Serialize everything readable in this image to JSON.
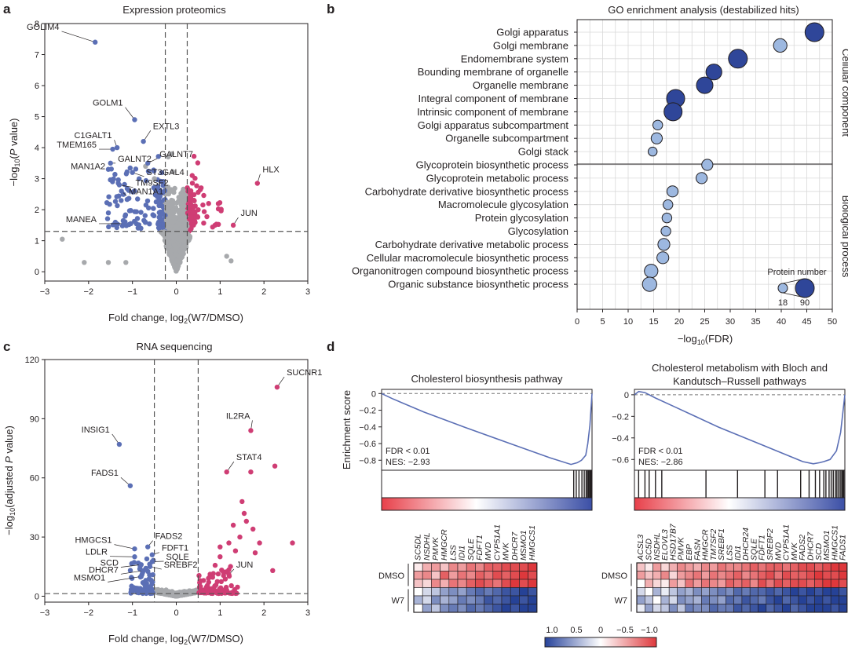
{
  "panel_letters": {
    "a": "a",
    "b": "b",
    "c": "c",
    "d": "d"
  },
  "colors": {
    "down": "#5b6fb5",
    "up": "#cf3d74",
    "ns": "#a7a9ac",
    "bubble_dark": "#2f4699",
    "bubble_light": "#9db8e0",
    "axis": "#231f20"
  },
  "chart_data": [
    {
      "id": "a",
      "type": "scatter",
      "title": "Expression proteomics",
      "xlabel": "Fold change, log2(W7/DMSO)",
      "ylabel": "−log10(P value)",
      "xlim": [
        -3,
        3
      ],
      "ylim": [
        -0.3,
        8
      ],
      "xticks": [
        "−3",
        "−2",
        "−1",
        "0",
        "1",
        "2",
        "3"
      ],
      "yticks": [
        "0",
        "1",
        "2",
        "3",
        "4",
        "5",
        "6",
        "7",
        "8"
      ],
      "thresholds": {
        "fc": [
          -0.25,
          0.25
        ],
        "p": 1.3
      },
      "labeled": [
        {
          "label": "GOLIM4",
          "x": -1.85,
          "y": 7.4,
          "lx": -2.65,
          "ly": 7.8
        },
        {
          "label": "GOLM1",
          "x": -0.95,
          "y": 4.9,
          "lx": -1.2,
          "ly": 5.35
        },
        {
          "label": "EXTL3",
          "x": -0.75,
          "y": 4.2,
          "lx": -0.55,
          "ly": 4.6
        },
        {
          "label": "C1GALT1",
          "x": -1.35,
          "y": 4.0,
          "lx": -1.45,
          "ly": 4.3
        },
        {
          "label": "TMEM165",
          "x": -1.45,
          "y": 3.95,
          "lx": -1.8,
          "ly": 4.0
        },
        {
          "label": "GALNT7",
          "x": -0.65,
          "y": 3.5,
          "lx": -0.4,
          "ly": 3.7
        },
        {
          "label": "GALNT2",
          "x": -1.5,
          "y": 3.5,
          "lx": -1.35,
          "ly": 3.55
        },
        {
          "label": "MAN1A2",
          "x": -1.55,
          "y": 3.3,
          "lx": -1.6,
          "ly": 3.3
        },
        {
          "label": "ST3GAL4",
          "x": -1.0,
          "y": 3.2,
          "lx": -0.7,
          "ly": 3.12
        },
        {
          "label": "TM9SF2",
          "x": -1.3,
          "y": 2.8,
          "lx": -0.95,
          "ly": 2.77
        },
        {
          "label": "MAN1A1",
          "x": -1.25,
          "y": 2.6,
          "lx": -1.1,
          "ly": 2.5
        },
        {
          "label": "MANEA",
          "x": -1.2,
          "y": 1.55,
          "lx": -1.8,
          "ly": 1.6
        },
        {
          "label": "HLX",
          "x": 1.85,
          "y": 2.85,
          "lx": 1.95,
          "ly": 3.2
        },
        {
          "label": "JUN",
          "x": 1.3,
          "y": 1.5,
          "lx": 1.45,
          "ly": 1.8
        }
      ]
    },
    {
      "id": "b",
      "type": "scatter",
      "title": "GO enrichment analysis (destabilized hits)",
      "xlabel": "−log10(FDR)",
      "xlim": [
        0,
        50
      ],
      "xticks": [
        "0",
        "5",
        "10",
        "15",
        "20",
        "25",
        "30",
        "35",
        "40",
        "45",
        "50"
      ],
      "groups": [
        {
          "name": "Cellular component",
          "terms": [
            {
              "term": "Golgi apparatus",
              "x": 46.5,
              "n": 90
            },
            {
              "term": "Golgi membrane",
              "x": 39.8,
              "n": 55
            },
            {
              "term": "Endomembrane system",
              "x": 31.5,
              "n": 90
            },
            {
              "term": "Bounding membrane of organelle",
              "x": 26.8,
              "n": 70
            },
            {
              "term": "Organelle membrane",
              "x": 25.0,
              "n": 75
            },
            {
              "term": "Integral component of membrane",
              "x": 19.3,
              "n": 85
            },
            {
              "term": "Intrinsic component of membrane",
              "x": 18.8,
              "n": 85
            },
            {
              "term": "Golgi apparatus subcompartment",
              "x": 15.8,
              "n": 30
            },
            {
              "term": "Organelle subcompartment",
              "x": 15.6,
              "n": 40
            },
            {
              "term": "Golgi stack",
              "x": 14.8,
              "n": 25
            }
          ]
        },
        {
          "name": "Biological process",
          "terms": [
            {
              "term": "Glycoprotein biosynthetic process",
              "x": 25.5,
              "n": 40
            },
            {
              "term": "Glycoprotein metabolic process",
              "x": 24.4,
              "n": 40
            },
            {
              "term": "Carbohydrate derivative biosynthetic process",
              "x": 18.7,
              "n": 40
            },
            {
              "term": "Macromolecule glycosylation",
              "x": 17.8,
              "n": 30
            },
            {
              "term": "Protein glycosylation",
              "x": 17.6,
              "n": 30
            },
            {
              "term": "Glycosylation",
              "x": 17.4,
              "n": 30
            },
            {
              "term": "Carbohydrate derivative metabolic process",
              "x": 17.0,
              "n": 45
            },
            {
              "term": "Cellular macromolecule biosynthetic process",
              "x": 16.8,
              "n": 45
            },
            {
              "term": "Organonitrogen compound biosynthetic process",
              "x": 14.5,
              "n": 55
            },
            {
              "term": "Organic substance biosynthetic process",
              "x": 14.2,
              "n": 60
            }
          ]
        }
      ],
      "legend": {
        "title": "Protein number",
        "min": "18",
        "max": "90",
        "placement": "bottom-right"
      }
    },
    {
      "id": "c",
      "type": "scatter",
      "title": "RNA sequencing",
      "xlabel": "Fold change, log2(W7/DMSO)",
      "ylabel": "−log10(adjusted P value)",
      "xlim": [
        -3,
        3
      ],
      "ylim": [
        -3,
        120
      ],
      "xticks": [
        "−3",
        "−2",
        "−1",
        "0",
        "1",
        "2",
        "3"
      ],
      "yticks": [
        "0",
        "30",
        "60",
        "90",
        "120"
      ],
      "thresholds": {
        "fc": [
          -0.5,
          0.5
        ],
        "p": 1.3
      },
      "labeled": [
        {
          "label": "SUCNR1",
          "x": 2.3,
          "y": 106,
          "lx": 2.5,
          "ly": 112
        },
        {
          "label": "IL2RA",
          "x": 1.7,
          "y": 84,
          "lx": 1.7,
          "ly": 90
        },
        {
          "label": "INSIG1",
          "x": -1.3,
          "y": 77,
          "lx": -1.5,
          "ly": 83
        },
        {
          "label": "STAT4",
          "x": 1.15,
          "y": 63,
          "lx": 1.35,
          "ly": 69
        },
        {
          "label": "FADS1",
          "x": -1.05,
          "y": 56,
          "lx": -1.3,
          "ly": 61
        },
        {
          "label": "FADS2",
          "x": -0.65,
          "y": 25,
          "lx": -0.5,
          "ly": 29
        },
        {
          "label": "HMGCS1",
          "x": -0.95,
          "y": 24,
          "lx": -1.45,
          "ly": 27
        },
        {
          "label": "FDFT1",
          "x": -0.55,
          "y": 21,
          "lx": -0.35,
          "ly": 23
        },
        {
          "label": "LDLR",
          "x": -0.95,
          "y": 20,
          "lx": -1.55,
          "ly": 21
        },
        {
          "label": "SQLE",
          "x": -0.55,
          "y": 17.5,
          "lx": -0.25,
          "ly": 18.5
        },
        {
          "label": "SCD",
          "x": -0.8,
          "y": 16,
          "lx": -1.3,
          "ly": 15.5
        },
        {
          "label": "SREBF2",
          "x": -0.6,
          "y": 15,
          "lx": -0.3,
          "ly": 14.5
        },
        {
          "label": "DHCR7",
          "x": -0.75,
          "y": 13,
          "lx": -1.3,
          "ly": 12
        },
        {
          "label": "MSMO1",
          "x": -0.8,
          "y": 10,
          "lx": -1.6,
          "ly": 8
        },
        {
          "label": "JUN",
          "x": 1.2,
          "y": 11,
          "lx": 1.35,
          "ly": 14.5
        }
      ]
    },
    {
      "id": "d1",
      "type": "line",
      "title_lines": [
        "Cholesterol biosynthesis pathway"
      ],
      "ylabel": "Enrichment score",
      "ylim": [
        -0.92,
        0.05
      ],
      "yticks": [
        "0",
        "−0.2",
        "−0.4",
        "−0.6",
        "−0.8"
      ],
      "annotations": [
        "FDR < 0.01",
        "NES: −2.93"
      ],
      "x": [
        0,
        0.05,
        0.2,
        0.4,
        0.6,
        0.8,
        0.9,
        0.93,
        0.95,
        0.97,
        0.98,
        0.99,
        1.0
      ],
      "y": [
        0,
        -0.06,
        -0.22,
        -0.41,
        -0.59,
        -0.77,
        -0.85,
        -0.83,
        -0.8,
        -0.74,
        -0.6,
        -0.38,
        0
      ],
      "hits": [
        0.913,
        0.925,
        0.938,
        0.952,
        0.963,
        0.972,
        0.978,
        0.983,
        0.988,
        0.992,
        0.996
      ],
      "heatmap": {
        "genes": [
          "SC5DL",
          "NSDHL",
          "PMVK",
          "HMGCR",
          "LSS",
          "IDI1",
          "SQLE",
          "FDFT1",
          "MVD",
          "CYP51A1",
          "MVK",
          "DHCR7",
          "MSMO1",
          "HMGCS1"
        ],
        "rows": [
          "DMSO",
          "W7"
        ],
        "values": [
          [
            0.1,
            0.4,
            0.5,
            0.3,
            0.6,
            0.5,
            0.7,
            0.6,
            0.8,
            0.8,
            0.9,
            0.9,
            0.9,
            1.0
          ],
          [
            0.5,
            0.6,
            0.3,
            0.8,
            0.5,
            0.7,
            0.6,
            0.8,
            0.7,
            0.9,
            0.8,
            0.9,
            1.0,
            0.9
          ],
          [
            0.3,
            0.2,
            0.6,
            0.4,
            0.7,
            0.6,
            0.8,
            0.9,
            0.8,
            0.7,
            0.9,
            1.0,
            0.9,
            1.0
          ],
          [
            0.0,
            -0.2,
            -0.3,
            -0.5,
            -0.6,
            -0.5,
            -0.7,
            -0.8,
            -0.7,
            -0.8,
            -0.9,
            -0.9,
            -1.0,
            -0.9
          ],
          [
            -0.4,
            -0.2,
            -0.6,
            -0.4,
            -0.5,
            -0.7,
            -0.6,
            -0.7,
            -0.9,
            -0.8,
            -0.9,
            -1.0,
            -0.9,
            -1.0
          ],
          [
            0.0,
            -0.5,
            -0.3,
            -0.6,
            -0.7,
            -0.6,
            -0.8,
            -0.7,
            -0.8,
            -0.9,
            -1.0,
            -0.9,
            -1.0,
            -1.0
          ]
        ]
      }
    },
    {
      "id": "d2",
      "type": "line",
      "title_lines": [
        "Cholesterol metabolism with Bloch and",
        "Kandutsch–Russell pathways"
      ],
      "ylabel": "",
      "ylim": [
        -0.7,
        0.05
      ],
      "yticks": [
        "0",
        "−0.2",
        "−0.4",
        "−0.6"
      ],
      "annotations": [
        "FDR < 0.01",
        "NES: −2.86"
      ],
      "x": [
        0,
        0.02,
        0.05,
        0.1,
        0.2,
        0.4,
        0.6,
        0.7,
        0.8,
        0.85,
        0.88,
        0.9,
        0.93,
        0.96,
        0.98,
        1.0
      ],
      "y": [
        0,
        0.03,
        0.02,
        -0.03,
        -0.12,
        -0.3,
        -0.46,
        -0.54,
        -0.62,
        -0.64,
        -0.63,
        -0.62,
        -0.6,
        -0.52,
        -0.35,
        0
      ],
      "hits": [
        0.02,
        0.05,
        0.07,
        0.1,
        0.13,
        0.34,
        0.49,
        0.62,
        0.68,
        0.79,
        0.83,
        0.86,
        0.88,
        0.9,
        0.91,
        0.925,
        0.935,
        0.945,
        0.955,
        0.962,
        0.97,
        0.978,
        0.985,
        0.99,
        0.995
      ],
      "heatmap": {
        "genes": [
          "ACSL3",
          "SC5D",
          "NSDHL",
          "ELOVL3",
          "HSD17B7",
          "PMVK",
          "EBP",
          "FASN",
          "HMGCR",
          "TM7SF2",
          "SREBF1",
          "LSS",
          "IDI1",
          "DHCR24",
          "SQLE",
          "FDFT1",
          "SREBF2",
          "MVD",
          "CYP51A1",
          "MVK",
          "FADS2",
          "DHCR7",
          "SCD",
          "MSMO1",
          "HMGCS1",
          "FADS1"
        ],
        "rows": [
          "DMSO",
          "W7"
        ],
        "values": [
          [
            0.3,
            0.1,
            0.5,
            0.2,
            0.4,
            0.6,
            0.5,
            0.4,
            0.6,
            0.5,
            0.7,
            0.6,
            0.6,
            0.7,
            0.8,
            0.7,
            0.8,
            0.8,
            0.7,
            0.8,
            0.9,
            0.9,
            0.8,
            0.9,
            1.0,
            1.0
          ],
          [
            0.5,
            0.3,
            0.4,
            0.6,
            0.2,
            0.5,
            0.6,
            0.7,
            0.5,
            0.7,
            0.6,
            0.7,
            0.8,
            0.6,
            0.7,
            0.8,
            0.9,
            0.7,
            0.9,
            0.8,
            0.8,
            0.9,
            1.0,
            0.9,
            0.9,
            1.0
          ],
          [
            0.0,
            0.4,
            0.2,
            0.1,
            0.5,
            0.3,
            0.7,
            0.5,
            0.7,
            0.6,
            0.5,
            0.8,
            0.7,
            0.8,
            0.6,
            0.9,
            0.7,
            0.9,
            0.8,
            0.9,
            0.9,
            0.8,
            0.9,
            1.0,
            1.0,
            0.9
          ],
          [
            -0.2,
            0.0,
            -0.4,
            -0.1,
            -0.3,
            -0.5,
            -0.4,
            -0.6,
            -0.5,
            -0.6,
            -0.7,
            -0.6,
            -0.8,
            -0.7,
            -0.8,
            -0.8,
            -0.9,
            -0.8,
            -0.9,
            -1.0,
            -0.9,
            -1.0,
            -0.9,
            -1.0,
            -1.0,
            -0.9
          ],
          [
            -0.5,
            -0.3,
            0.0,
            -0.4,
            -0.2,
            -0.6,
            -0.5,
            -0.4,
            -0.7,
            -0.6,
            -0.5,
            -0.8,
            -0.7,
            -0.9,
            -0.8,
            -0.7,
            -0.9,
            -1.0,
            -0.8,
            -0.9,
            -1.0,
            -0.9,
            -1.0,
            -0.9,
            -1.0,
            -1.0
          ],
          [
            -0.1,
            -0.5,
            -0.2,
            -0.3,
            -0.6,
            -0.3,
            -0.7,
            -0.6,
            -0.6,
            -0.8,
            -0.7,
            -0.7,
            -0.9,
            -0.8,
            -0.9,
            -1.0,
            -0.8,
            -0.9,
            -1.0,
            -0.8,
            -0.9,
            -1.0,
            -1.0,
            -1.0,
            -0.9,
            -1.0
          ]
        ]
      }
    }
  ],
  "colorbar": {
    "ticks": [
      "1.0",
      "0.5",
      "0",
      "−0.5",
      "−1.0"
    ]
  }
}
